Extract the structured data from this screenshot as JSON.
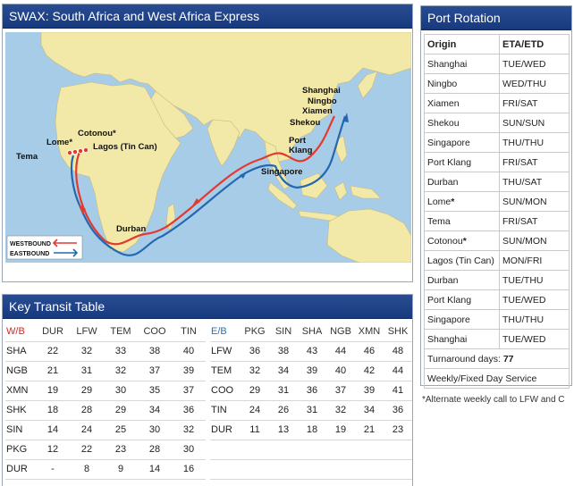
{
  "map_panel": {
    "title": "SWAX: South Africa and West Africa Express",
    "ports": {
      "shanghai": "Shanghai",
      "ningbo": "Ningbo",
      "xiamen": "Xiamen",
      "shekou": "Shekou",
      "port_klang_1": "Port",
      "port_klang_2": "Klang",
      "singapore": "Singapore",
      "durban": "Durban",
      "lome": "Lome*",
      "cotonou": "Cotonou*",
      "lagos": "Lagos (Tin Can)",
      "tema": "Tema"
    },
    "legend": {
      "westbound": "WESTBOUND",
      "eastbound": "EASTBOUND"
    },
    "colors": {
      "westbound": "#e23a2e",
      "eastbound": "#2568b0",
      "sea": "#a6cce8",
      "land": "#f2e9a8"
    }
  },
  "transit_panel": {
    "title": "Key Transit Table",
    "westbound": {
      "headers": [
        "W/B",
        "DUR",
        "LFW",
        "TEM",
        "COO",
        "TIN"
      ],
      "rows": [
        [
          "SHA",
          "22",
          "32",
          "33",
          "38",
          "40"
        ],
        [
          "NGB",
          "21",
          "31",
          "32",
          "37",
          "39"
        ],
        [
          "XMN",
          "19",
          "29",
          "30",
          "35",
          "37"
        ],
        [
          "SHK",
          "18",
          "28",
          "29",
          "34",
          "36"
        ],
        [
          "SIN",
          "14",
          "24",
          "25",
          "30",
          "32"
        ],
        [
          "PKG",
          "12",
          "22",
          "23",
          "28",
          "30"
        ],
        [
          "DUR",
          "-",
          "8",
          "9",
          "14",
          "16"
        ]
      ]
    },
    "eastbound": {
      "headers": [
        "E/B",
        "PKG",
        "SIN",
        "SHA",
        "NGB",
        "XMN",
        "SHK"
      ],
      "rows": [
        [
          "LFW",
          "36",
          "38",
          "43",
          "44",
          "46",
          "48"
        ],
        [
          "TEM",
          "32",
          "34",
          "39",
          "40",
          "42",
          "44"
        ],
        [
          "COO",
          "29",
          "31",
          "36",
          "37",
          "39",
          "41"
        ],
        [
          "TIN",
          "24",
          "26",
          "31",
          "32",
          "34",
          "36"
        ],
        [
          "DUR",
          "11",
          "13",
          "18",
          "19",
          "21",
          "23"
        ],
        [
          "",
          "",
          "",
          "",
          "",
          "",
          ""
        ],
        [
          "",
          "",
          "",
          "",
          "",
          "",
          ""
        ]
      ]
    }
  },
  "rotation_panel": {
    "title": "Port Rotation",
    "headers": [
      "Origin",
      "ETA/ETD"
    ],
    "rows": [
      [
        "Shanghai",
        "TUE/WED"
      ],
      [
        "Ningbo",
        "WED/THU"
      ],
      [
        "Xiamen",
        "FRI/SAT"
      ],
      [
        "Shekou",
        "SUN/SUN"
      ],
      [
        "Singapore",
        "THU/THU"
      ],
      [
        "Port Klang",
        "FRI/SAT"
      ],
      [
        "Durban",
        "THU/SAT"
      ],
      [
        "Lome",
        "SUN/MON"
      ],
      [
        "Tema",
        "FRI/SAT"
      ],
      [
        "Cotonou",
        "SUN/MON"
      ],
      [
        "Lagos (Tin Can)",
        "MON/FRI"
      ],
      [
        "Durban",
        "TUE/THU"
      ],
      [
        "Port Klang",
        "TUE/WED"
      ],
      [
        "Singapore",
        "THU/THU"
      ],
      [
        "Shanghai",
        "TUE/WED"
      ]
    ],
    "star": "*",
    "turnaround_label": "Turnaround days: ",
    "turnaround_value": "77",
    "service_note": "Weekly/Fixed Day Service",
    "footnote": "*Alternate weekly call to LFW and C"
  }
}
